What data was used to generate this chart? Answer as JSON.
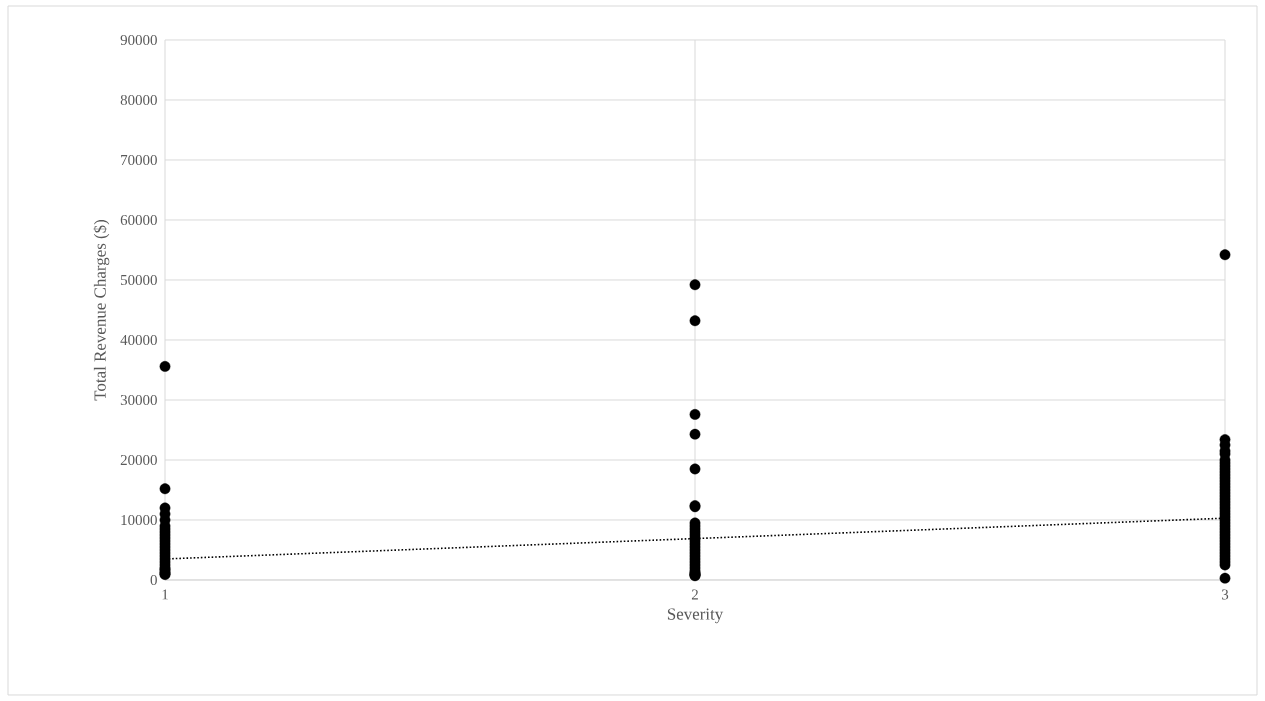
{
  "chart_data": {
    "type": "scatter",
    "xlabel": "Severity",
    "ylabel": "Total Revenue Charges ($)",
    "xlim": [
      1,
      3
    ],
    "xticks": [
      1,
      2,
      3
    ],
    "ylim": [
      0,
      90000
    ],
    "yticks": [
      0,
      10000,
      20000,
      30000,
      40000,
      50000,
      60000,
      70000,
      80000,
      90000
    ],
    "grid": true,
    "series": [
      {
        "color": "#000000",
        "marker": "circle",
        "x": [
          1,
          1,
          1,
          1,
          1,
          1,
          1,
          1,
          1,
          1,
          1,
          1,
          1,
          1,
          1,
          1,
          1,
          1,
          1,
          1,
          1,
          1,
          1,
          1,
          1,
          2,
          2,
          2,
          2,
          2,
          2,
          2,
          2,
          2,
          2,
          2,
          2,
          2,
          2,
          2,
          2,
          2,
          2,
          2,
          2,
          2,
          2,
          2,
          2,
          2,
          2,
          2,
          2,
          2,
          3,
          3,
          3,
          3,
          3,
          3,
          3,
          3,
          3,
          3,
          3,
          3,
          3,
          3,
          3,
          3,
          3,
          3,
          3,
          3,
          3,
          3,
          3,
          3,
          3,
          3,
          3,
          3,
          3,
          3,
          3,
          3,
          3,
          3,
          3,
          3,
          3,
          3,
          3,
          3,
          3,
          3
        ],
        "values": [
          35600,
          15200,
          12000,
          11000,
          10000,
          9000,
          8500,
          8000,
          7500,
          7000,
          6500,
          6000,
          5500,
          5000,
          4500,
          4000,
          3500,
          3000,
          2500,
          2000,
          1800,
          1500,
          1200,
          1000,
          900,
          49200,
          43200,
          27600,
          24300,
          18500,
          12400,
          12200,
          9500,
          9000,
          8500,
          8000,
          7500,
          7000,
          6500,
          6000,
          5500,
          5000,
          4500,
          4000,
          3500,
          3000,
          2500,
          2000,
          1500,
          1200,
          1000,
          900,
          800,
          700,
          54200,
          23400,
          22500,
          21500,
          21000,
          20000,
          19500,
          19000,
          18500,
          18000,
          17500,
          17000,
          16500,
          16000,
          15500,
          15000,
          14500,
          14000,
          13500,
          13000,
          12500,
          12000,
          11500,
          11000,
          10500,
          10000,
          9500,
          9000,
          8500,
          8000,
          7500,
          7000,
          6500,
          6000,
          5500,
          5000,
          4500,
          4000,
          3500,
          3000,
          2500,
          300
        ]
      },
      {
        "type": "line",
        "color": "#000000",
        "line_style": "dotted",
        "x": [
          1,
          3
        ],
        "values": [
          3500,
          10300
        ]
      }
    ]
  }
}
